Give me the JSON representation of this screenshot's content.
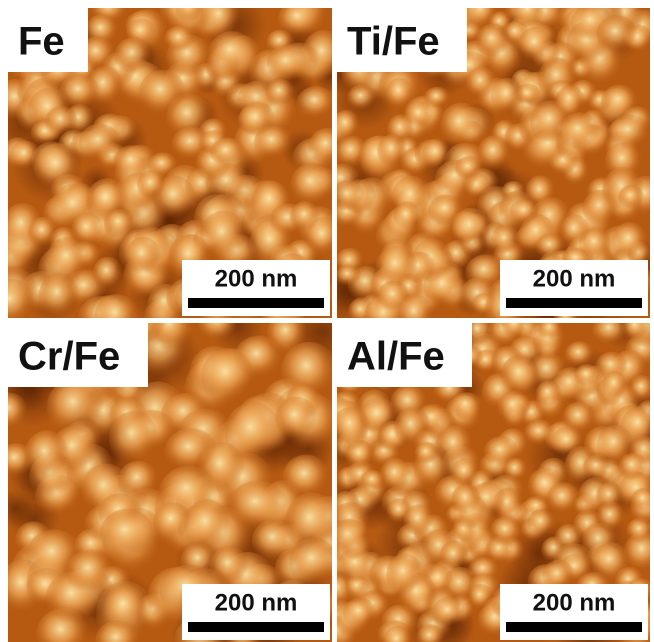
{
  "panels": [
    {
      "label": "Fe",
      "scale_bar": "200 nm"
    },
    {
      "label": "Ti/Fe",
      "scale_bar": "200 nm"
    },
    {
      "label": "Cr/Fe",
      "scale_bar": "200 nm"
    },
    {
      "label": "Al/Fe",
      "scale_bar": "200 nm"
    }
  ]
}
